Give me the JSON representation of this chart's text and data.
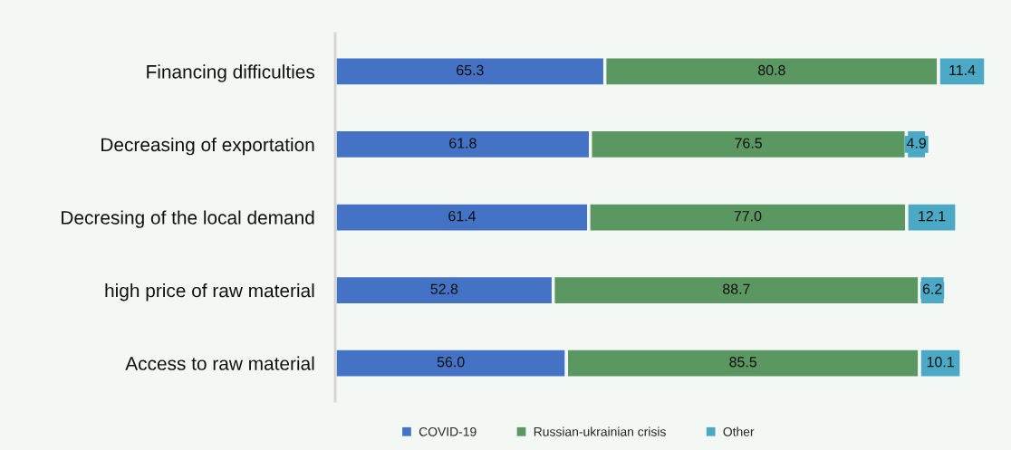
{
  "chart_data": {
    "type": "bar",
    "orientation": "horizontal",
    "stacked": true,
    "categories": [
      "Financing difficulties",
      "Decreasing of exportation",
      "Decresing of the local demand",
      "high price of raw material",
      "Access to raw material"
    ],
    "series": [
      {
        "name": "COVID-19",
        "color": "#4472c4",
        "values": [
          65.3,
          61.8,
          61.4,
          52.8,
          56.0
        ],
        "value_labels": [
          "65.3",
          "61.8",
          "61.4",
          "52.8",
          "56.0"
        ]
      },
      {
        "name": "Russian-ukrainian crisis",
        "color": "#5b9761",
        "values": [
          80.8,
          76.5,
          77.0,
          88.7,
          85.5
        ],
        "value_labels": [
          "80.8",
          "76.5",
          "77.0",
          "88.7",
          "85.5"
        ]
      },
      {
        "name": "Other",
        "color": "#4ba9c6",
        "values": [
          11.4,
          4.9,
          12.1,
          6.2,
          10.1
        ],
        "value_labels": [
          "11.4",
          "4.9",
          "12.1",
          "6.2",
          "10.1"
        ]
      }
    ],
    "tick_labels": "y",
    "legend": "bottom"
  }
}
